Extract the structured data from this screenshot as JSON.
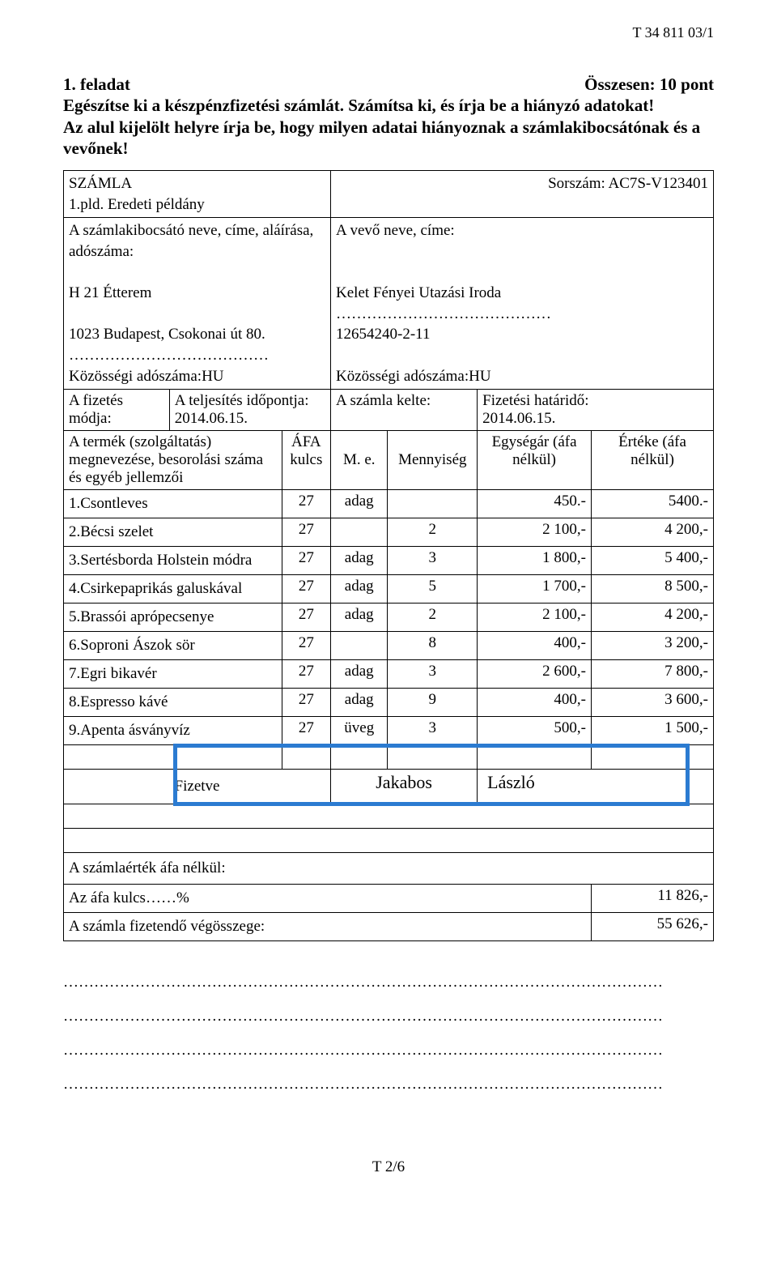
{
  "doc_code": "T 34 811 03/1",
  "task_number": "1. feladat",
  "points_label": "Összesen: 10 pont",
  "instructions_line1": "Egészítse ki a készpénzfizetési számlát. Számítsa ki, és írja be a hiányzó adatokat!",
  "instructions_line2": "Az alul kijelölt helyre írja be, hogy milyen adatai hiányoznak a számlakibocsátónak és a vevőnek!",
  "invoice": {
    "title": "SZÁMLA",
    "copy": "1.pld. Eredeti példány",
    "serial_label": "Sorszám: AC7S-V123401",
    "issuer_label": "A számlakibocsátó neve, címe, aláírása, adószáma:",
    "issuer_name": "H 21 Étterem",
    "issuer_addr": "1023 Budapest, Csokonai út 80.",
    "issuer_dots": "…………………………………",
    "issuer_vat": "Közösségi adószáma:HU",
    "buyer_label": "A vevő neve, címe:",
    "buyer_name": "Kelet Fényei Utazási Iroda",
    "buyer_dots": "……………………………………",
    "buyer_tax": "12654240-2-11",
    "buyer_vat": "Közösségi adószáma:HU",
    "payment_mode_label": "A fizetés módja:",
    "fulfil_label": "A teljesítés időpontja:",
    "fulfil_date": "2014.06.15.",
    "issue_label": "A számla kelte:",
    "due_label": "Fizetési határidő:",
    "due_date": "2014.06.15.",
    "col_product": "A termék (szolgáltatás) megnevezése, besorolási száma és egyéb jellemzői",
    "col_afa": "ÁFA kulcs",
    "col_me": "M. e.",
    "col_qty": "Mennyiség",
    "col_unit": "Egységár (áfa nélkül)",
    "col_value": "Értéke (áfa nélkül)",
    "rows": [
      {
        "name": "1.Csontleves",
        "afa": "27",
        "me": "adag",
        "qty": "",
        "unit": "450.-",
        "val": "5400.-"
      },
      {
        "name": "2.Bécsi szelet",
        "afa": "27",
        "me": "",
        "qty": "2",
        "unit": "2 100,-",
        "val": "4 200,-"
      },
      {
        "name": "3.Sertésborda Holstein módra",
        "afa": "27",
        "me": "adag",
        "qty": "3",
        "unit": "1 800,-",
        "val": "5 400,-"
      },
      {
        "name": "4.Csirkepaprikás galuskával",
        "afa": "27",
        "me": "adag",
        "qty": "5",
        "unit": "1 700,-",
        "val": "8 500,-"
      },
      {
        "name": "5.Brassói aprópecsenye",
        "afa": "27",
        "me": "adag",
        "qty": "2",
        "unit": "2 100,-",
        "val": "4 200,-"
      },
      {
        "name": "6.Soproni Ászok sör",
        "afa": "27",
        "me": "",
        "qty": "8",
        "unit": "400,-",
        "val": "3 200,-"
      },
      {
        "name": "7.Egri bikavér",
        "afa": "27",
        "me": "adag",
        "qty": "3",
        "unit": "2 600,-",
        "val": "7 800,-"
      },
      {
        "name": "8.Espresso kávé",
        "afa": "27",
        "me": "adag",
        "qty": "9",
        "unit": "400,-",
        "val": "3 600,-"
      },
      {
        "name": "9.Apenta ásványvíz",
        "afa": "27",
        "me": "üveg",
        "qty": "3",
        "unit": "500,-",
        "val": "1 500,-"
      }
    ],
    "paid_label": "Fizetve",
    "sig_first": "Jakabos",
    "sig_last": "László",
    "summary_net": "A számlaérték áfa nélkül:",
    "summary_vat": "Az áfa kulcs……%",
    "summary_vat_val": "11 826,-",
    "summary_total": "A számla fizetendő végösszege:",
    "summary_total_val": "55 626,-"
  },
  "dotted_line": "………………………………………………………………………………………………………",
  "footer": "T 2/6",
  "style": {
    "blue_color": "#2b7bd1",
    "font_body": 19,
    "font_header": 21
  }
}
